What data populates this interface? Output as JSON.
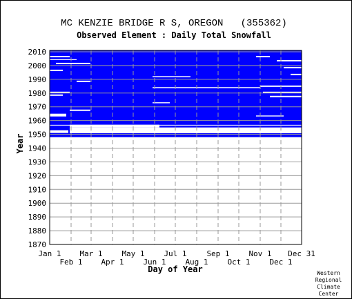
{
  "chart_data": {
    "type": "availability",
    "title": "MC KENZIE BRIDGE R S, OREGON   (355362)",
    "subtitle": "Observed Element : Daily Total Snowfall",
    "xlabel": "Day of Year",
    "ylabel": "Year",
    "credit": [
      "Western",
      "Regional",
      "Climate",
      "Center"
    ],
    "xlim": [
      1,
      366
    ],
    "ylim": [
      1870,
      2011
    ],
    "xticks": [
      {
        "value": 1,
        "label": "Jan 1"
      },
      {
        "value": 32,
        "label": "Feb 1"
      },
      {
        "value": 61,
        "label": "Mar 1"
      },
      {
        "value": 92,
        "label": "Apr 1"
      },
      {
        "value": 122,
        "label": "May 1"
      },
      {
        "value": 153,
        "label": "Jun 1"
      },
      {
        "value": 183,
        "label": "Jul 1"
      },
      {
        "value": 214,
        "label": "Aug 1"
      },
      {
        "value": 245,
        "label": "Sep 1"
      },
      {
        "value": 275,
        "label": "Oct 1"
      },
      {
        "value": 306,
        "label": "Nov 1"
      },
      {
        "value": 336,
        "label": "Dec 1"
      },
      {
        "value": 366,
        "label": "Dec 31"
      }
    ],
    "yticks": [
      1870,
      1880,
      1890,
      1900,
      1910,
      1920,
      1930,
      1940,
      1950,
      1960,
      1970,
      1980,
      1990,
      2000,
      2010
    ],
    "grid": true,
    "observed_color": "#0000ff",
    "missing_color": "#ffffff",
    "observed": [
      [
        1,
        366,
        1948,
        2011
      ]
    ],
    "missing": [
      [
        30,
        366,
        1950.8,
        1955
      ],
      [
        1,
        28,
        1951,
        1953
      ],
      [
        30,
        160,
        1955,
        1957
      ],
      [
        1,
        366,
        1956.4,
        1956.9
      ],
      [
        250,
        366,
        1953,
        1954
      ],
      [
        150,
        205,
        1991.6,
        1992.3
      ],
      [
        150,
        306,
        1983.6,
        1984.3
      ],
      [
        150,
        175,
        1972.6,
        1973.3
      ],
      [
        1,
        30,
        2006,
        2007
      ],
      [
        10,
        60,
        2001,
        2002
      ],
      [
        1,
        20,
        1996,
        1997
      ],
      [
        1,
        30,
        1980,
        1981
      ],
      [
        1,
        20,
        1978,
        1979
      ],
      [
        1,
        25,
        1963,
        1965
      ],
      [
        30,
        60,
        1967,
        1968
      ],
      [
        1,
        40,
        2004,
        2004.6
      ],
      [
        40,
        60,
        1988,
        1989
      ],
      [
        306,
        366,
        1984.5,
        1985.5
      ],
      [
        330,
        366,
        2003,
        2004
      ],
      [
        300,
        320,
        2006,
        2007
      ],
      [
        340,
        366,
        1998,
        1999
      ],
      [
        320,
        366,
        1977,
        1978
      ],
      [
        310,
        366,
        1980,
        1981
      ],
      [
        300,
        340,
        1963,
        1963.7
      ],
      [
        350,
        366,
        1993,
        1994
      ]
    ]
  }
}
